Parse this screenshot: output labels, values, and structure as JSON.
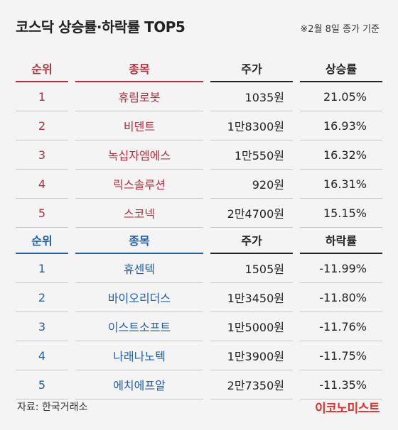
{
  "title": "코스닥 상승률·하락률 TOP5",
  "note": "※2월 8일 종가 기준",
  "gainers": {
    "headers": {
      "rank": "순위",
      "name": "종목",
      "price": "주가",
      "rate": "상승률"
    },
    "rows": [
      {
        "rank": "1",
        "name": "휴림로봇",
        "price": "1035원",
        "rate": "21.05%"
      },
      {
        "rank": "2",
        "name": "비덴트",
        "price": "1만8300원",
        "rate": "16.93%"
      },
      {
        "rank": "3",
        "name": "녹십자엠에스",
        "price": "1만550원",
        "rate": "16.32%"
      },
      {
        "rank": "4",
        "name": "릭스솔루션",
        "price": "920원",
        "rate": "16.31%"
      },
      {
        "rank": "5",
        "name": "스코넥",
        "price": "2만4700원",
        "rate": "15.15%"
      }
    ]
  },
  "losers": {
    "headers": {
      "rank": "순위",
      "name": "종목",
      "price": "주가",
      "rate": "하락률"
    },
    "rows": [
      {
        "rank": "1",
        "name": "휴센텍",
        "price": "1505원",
        "rate": "-11.99%"
      },
      {
        "rank": "2",
        "name": "바이오리더스",
        "price": "1만3450원",
        "rate": "-11.80%"
      },
      {
        "rank": "3",
        "name": "이스트소프트",
        "price": "1만5000원",
        "rate": "-11.76%"
      },
      {
        "rank": "4",
        "name": "나래나노텍",
        "price": "1만3900원",
        "rate": "-11.75%"
      },
      {
        "rank": "5",
        "name": "에치에프알",
        "price": "2만7350원",
        "rate": "-11.35%"
      }
    ]
  },
  "source": "자료: 한국거래소",
  "brand": "이코노미스트",
  "colors": {
    "gain": "#b5303e",
    "loss": "#2060a8",
    "brand": "#e0302a"
  }
}
